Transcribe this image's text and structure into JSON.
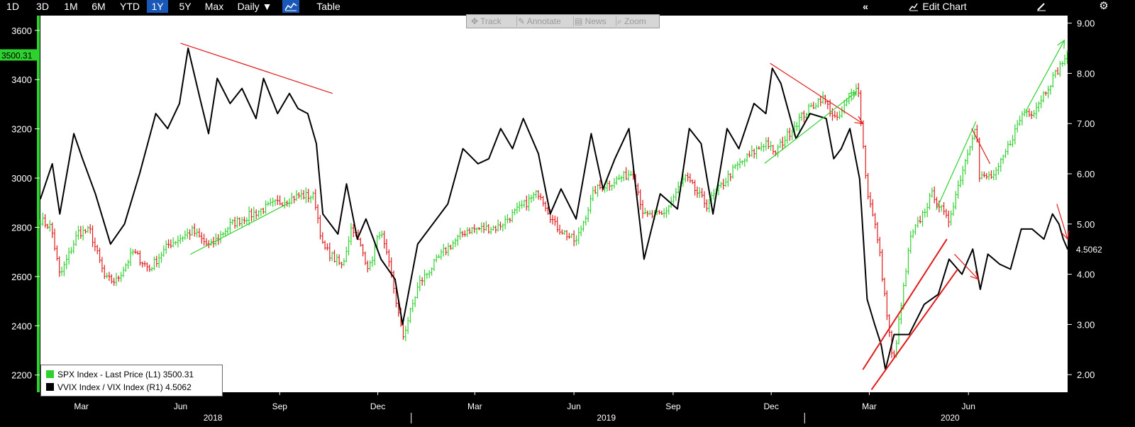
{
  "toolbar": {
    "ranges": [
      "1D",
      "3D",
      "1M",
      "6M",
      "YTD",
      "1Y",
      "5Y",
      "Max"
    ],
    "active_range": "1Y",
    "interval_label": "Daily ▼",
    "table_label": "Table",
    "edit_chart_label": "Edit Chart"
  },
  "chart_tools": [
    "Track",
    "Annotate",
    "News",
    "Zoom"
  ],
  "colors": {
    "up": "#2fd12f",
    "down": "#e01b1b",
    "vvix_vix": "#000000",
    "trend_green": "#2fd12f",
    "trend_red": "#e01b1b",
    "price_tag": "#2fd12f",
    "left_axis": "#2fd12f"
  },
  "chart_data": {
    "type": "line",
    "x_range": [
      "2018-01-22",
      "2020-09-01"
    ],
    "y_left": {
      "range": [
        2130,
        3660
      ],
      "ticks": [
        2200,
        2400,
        2600,
        2800,
        3000,
        3200,
        3400,
        3600
      ]
    },
    "y_right": {
      "range": [
        1.65,
        9.15
      ],
      "ticks": [
        "2.00",
        "3.00",
        "4.00",
        "5.00",
        "6.00",
        "7.00",
        "8.00",
        "9.00"
      ]
    },
    "x_month_labels": [
      {
        "label": "Mar",
        "date": "2018-03-01"
      },
      {
        "label": "Jun",
        "date": "2018-06-01"
      },
      {
        "label": "Sep",
        "date": "2018-09-01"
      },
      {
        "label": "Dec",
        "date": "2018-12-01"
      },
      {
        "label": "Mar",
        "date": "2019-03-01"
      },
      {
        "label": "Jun",
        "date": "2019-06-01"
      },
      {
        "label": "Sep",
        "date": "2019-09-01"
      },
      {
        "label": "Dec",
        "date": "2019-12-01"
      },
      {
        "label": "Mar",
        "date": "2020-03-01"
      },
      {
        "label": "Jun",
        "date": "2020-06-01"
      }
    ],
    "x_year_labels": [
      {
        "label": "2018",
        "date": "2018-07-01"
      },
      {
        "label": "2019",
        "date": "2019-07-01"
      },
      {
        "label": "2020",
        "date": "2020-05-15"
      }
    ],
    "year_separators": [
      "2019-01-01",
      "2020-01-01"
    ],
    "last_price_tag": "3500.31",
    "last_ratio_tag": "4.5062",
    "series": [
      {
        "name": "SPX Index - Last Price (L1) 3500.31",
        "axis": "left",
        "style": "ohlc",
        "points": [
          [
            "2018-01-22",
            2830
          ],
          [
            "2018-02-01",
            2800
          ],
          [
            "2018-02-09",
            2600
          ],
          [
            "2018-02-26",
            2780
          ],
          [
            "2018-03-09",
            2785
          ],
          [
            "2018-03-23",
            2590
          ],
          [
            "2018-04-02",
            2580
          ],
          [
            "2018-04-18",
            2700
          ],
          [
            "2018-05-03",
            2630
          ],
          [
            "2018-05-21",
            2730
          ],
          [
            "2018-06-12",
            2785
          ],
          [
            "2018-06-28",
            2720
          ],
          [
            "2018-07-17",
            2810
          ],
          [
            "2018-08-07",
            2855
          ],
          [
            "2018-08-27",
            2895
          ],
          [
            "2018-09-20",
            2930
          ],
          [
            "2018-10-03",
            2925
          ],
          [
            "2018-10-11",
            2720
          ],
          [
            "2018-10-29",
            2640
          ],
          [
            "2018-11-07",
            2810
          ],
          [
            "2018-11-23",
            2630
          ],
          [
            "2018-12-03",
            2790
          ],
          [
            "2018-12-14",
            2600
          ],
          [
            "2018-12-24",
            2350
          ],
          [
            "2019-01-08",
            2570
          ],
          [
            "2019-01-31",
            2700
          ],
          [
            "2019-02-22",
            2790
          ],
          [
            "2019-03-22",
            2800
          ],
          [
            "2019-04-30",
            2945
          ],
          [
            "2019-05-14",
            2810
          ],
          [
            "2019-06-03",
            2740
          ],
          [
            "2019-06-20",
            2950
          ],
          [
            "2019-07-26",
            3025
          ],
          [
            "2019-08-05",
            2845
          ],
          [
            "2019-08-23",
            2850
          ],
          [
            "2019-09-12",
            3005
          ],
          [
            "2019-10-02",
            2890
          ],
          [
            "2019-10-28",
            3040
          ],
          [
            "2019-11-27",
            3150
          ],
          [
            "2019-12-03",
            3095
          ],
          [
            "2019-12-27",
            3240
          ],
          [
            "2020-01-17",
            3330
          ],
          [
            "2020-01-31",
            3230
          ],
          [
            "2020-02-19",
            3390
          ],
          [
            "2020-02-28",
            2950
          ],
          [
            "2020-03-09",
            2750
          ],
          [
            "2020-03-23",
            2240
          ],
          [
            "2020-04-08",
            2750
          ],
          [
            "2020-04-29",
            2940
          ],
          [
            "2020-05-13",
            2820
          ],
          [
            "2020-06-08",
            3230
          ],
          [
            "2020-06-11",
            3000
          ],
          [
            "2020-06-26",
            3010
          ],
          [
            "2020-07-22",
            3270
          ],
          [
            "2020-07-31",
            3270
          ],
          [
            "2020-08-31",
            3500
          ]
        ]
      },
      {
        "name": "VVIX Index / VIX Index (R1) 4.5062",
        "axis": "right",
        "style": "line",
        "points": [
          [
            "2018-01-22",
            5.5
          ],
          [
            "2018-02-02",
            6.2
          ],
          [
            "2018-02-09",
            5.2
          ],
          [
            "2018-02-22",
            6.8
          ],
          [
            "2018-03-02",
            6.3
          ],
          [
            "2018-03-14",
            5.6
          ],
          [
            "2018-03-28",
            4.6
          ],
          [
            "2018-04-10",
            5.0
          ],
          [
            "2018-04-24",
            6.0
          ],
          [
            "2018-05-09",
            7.2
          ],
          [
            "2018-05-20",
            6.9
          ],
          [
            "2018-05-31",
            7.4
          ],
          [
            "2018-06-08",
            8.5
          ],
          [
            "2018-06-19",
            7.5
          ],
          [
            "2018-06-27",
            6.8
          ],
          [
            "2018-07-05",
            7.9
          ],
          [
            "2018-07-17",
            7.4
          ],
          [
            "2018-07-28",
            7.7
          ],
          [
            "2018-08-10",
            7.1
          ],
          [
            "2018-08-17",
            7.9
          ],
          [
            "2018-08-30",
            7.2
          ],
          [
            "2018-09-10",
            7.6
          ],
          [
            "2018-09-18",
            7.3
          ],
          [
            "2018-09-27",
            7.2
          ],
          [
            "2018-10-05",
            6.6
          ],
          [
            "2018-10-11",
            5.2
          ],
          [
            "2018-10-25",
            4.8
          ],
          [
            "2018-11-02",
            5.8
          ],
          [
            "2018-11-12",
            4.7
          ],
          [
            "2018-11-20",
            5.1
          ],
          [
            "2018-12-04",
            4.3
          ],
          [
            "2018-12-17",
            3.9
          ],
          [
            "2018-12-24",
            3.0
          ],
          [
            "2019-01-07",
            4.6
          ],
          [
            "2019-01-21",
            5.0
          ],
          [
            "2019-02-04",
            5.4
          ],
          [
            "2019-02-18",
            6.5
          ],
          [
            "2019-03-04",
            6.2
          ],
          [
            "2019-03-14",
            6.3
          ],
          [
            "2019-03-25",
            6.9
          ],
          [
            "2019-04-05",
            6.5
          ],
          [
            "2019-04-15",
            7.1
          ],
          [
            "2019-04-29",
            6.4
          ],
          [
            "2019-05-10",
            5.2
          ],
          [
            "2019-05-20",
            5.7
          ],
          [
            "2019-06-03",
            5.1
          ],
          [
            "2019-06-17",
            6.8
          ],
          [
            "2019-06-28",
            5.7
          ],
          [
            "2019-07-09",
            6.3
          ],
          [
            "2019-07-22",
            6.9
          ],
          [
            "2019-08-05",
            4.3
          ],
          [
            "2019-08-20",
            5.6
          ],
          [
            "2019-09-05",
            5.3
          ],
          [
            "2019-09-16",
            6.9
          ],
          [
            "2019-09-27",
            6.6
          ],
          [
            "2019-10-08",
            5.2
          ],
          [
            "2019-10-21",
            6.9
          ],
          [
            "2019-11-01",
            6.5
          ],
          [
            "2019-11-15",
            7.4
          ],
          [
            "2019-11-26",
            7.2
          ],
          [
            "2019-12-02",
            8.1
          ],
          [
            "2019-12-10",
            7.8
          ],
          [
            "2019-12-24",
            6.7
          ],
          [
            "2020-01-06",
            7.2
          ],
          [
            "2020-01-21",
            7.1
          ],
          [
            "2020-01-28",
            6.3
          ],
          [
            "2020-02-04",
            6.5
          ],
          [
            "2020-02-12",
            6.9
          ],
          [
            "2020-02-21",
            5.9
          ],
          [
            "2020-02-28",
            3.5
          ],
          [
            "2020-03-06",
            3.0
          ],
          [
            "2020-03-12",
            2.6
          ],
          [
            "2020-03-16",
            2.1
          ],
          [
            "2020-03-24",
            2.8
          ],
          [
            "2020-04-07",
            2.8
          ],
          [
            "2020-04-21",
            3.4
          ],
          [
            "2020-05-04",
            3.6
          ],
          [
            "2020-05-14",
            4.3
          ],
          [
            "2020-05-26",
            4.0
          ],
          [
            "2020-06-05",
            4.5
          ],
          [
            "2020-06-12",
            3.7
          ],
          [
            "2020-06-19",
            4.4
          ],
          [
            "2020-06-30",
            4.2
          ],
          [
            "2020-07-10",
            4.1
          ],
          [
            "2020-07-20",
            4.9
          ],
          [
            "2020-07-30",
            4.9
          ],
          [
            "2020-08-10",
            4.7
          ],
          [
            "2020-08-18",
            5.2
          ],
          [
            "2020-08-24",
            5.0
          ],
          [
            "2020-08-28",
            4.7
          ],
          [
            "2020-09-01",
            4.5
          ]
        ]
      }
    ],
    "annotations": [
      {
        "color": "red",
        "from": [
          "2018-06-01",
          8.6
        ],
        "to": [
          "2018-10-20",
          7.6
        ],
        "axis": "right",
        "arrow": false
      },
      {
        "color": "green",
        "from": [
          "2018-06-10",
          2690
        ],
        "to": [
          "2018-09-10",
          2900
        ],
        "axis": "left",
        "arrow": false
      },
      {
        "color": "red",
        "from": [
          "2019-11-30",
          8.2
        ],
        "to": [
          "2020-02-24",
          7.0
        ],
        "axis": "right",
        "arrow": true
      },
      {
        "color": "green",
        "from": [
          "2019-11-25",
          3060
        ],
        "to": [
          "2020-02-18",
          3350
        ],
        "axis": "left",
        "arrow": true
      },
      {
        "color": "green",
        "from": [
          "2020-05-02",
          2870
        ],
        "to": [
          "2020-06-08",
          3230
        ],
        "axis": "left",
        "arrow": false
      },
      {
        "color": "red",
        "from": [
          "2020-06-04",
          6.9
        ],
        "to": [
          "2020-06-21",
          6.2
        ],
        "axis": "right",
        "arrow": false
      },
      {
        "color": "green",
        "from": [
          "2020-07-24",
          3270
        ],
        "to": [
          "2020-08-29",
          3560
        ],
        "axis": "left",
        "arrow": true
      },
      {
        "color": "red",
        "from": [
          "2020-08-22",
          5.4
        ],
        "to": [
          "2020-09-01",
          4.7
        ],
        "axis": "right",
        "arrow": true
      },
      {
        "color": "red",
        "from": [
          "2020-05-19",
          4.4
        ],
        "to": [
          "2020-06-10",
          3.9
        ],
        "axis": "right",
        "arrow": true
      },
      {
        "color": "red",
        "from": [
          "2020-02-24",
          2.1
        ],
        "to": [
          "2020-05-12",
          4.7
        ],
        "axis": "right",
        "arrow": false,
        "heavy": true
      },
      {
        "color": "red",
        "from": [
          "2020-03-03",
          1.7
        ],
        "to": [
          "2020-05-22",
          4.1
        ],
        "axis": "right",
        "arrow": false,
        "heavy": true
      }
    ]
  }
}
